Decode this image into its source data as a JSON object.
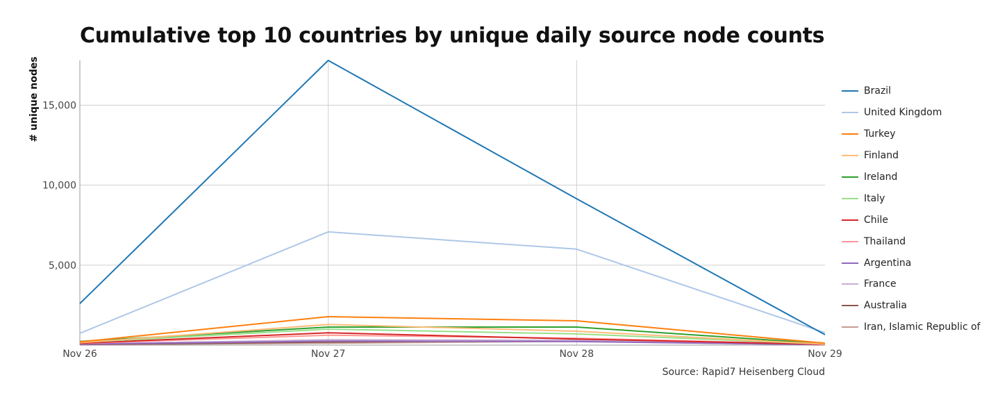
{
  "chart_data": {
    "type": "line",
    "title": "Cumulative top 10 countries by unique daily source node counts",
    "xlabel": "",
    "ylabel": "# unique nodes",
    "source": "Source: Rapid7 Heisenberg Cloud",
    "x": [
      "Nov 26",
      "Nov 27",
      "Nov 28",
      "Nov 29"
    ],
    "ylim": [
      0,
      17800
    ],
    "yticks": [
      5000,
      10000,
      15000
    ],
    "ytick_labels": [
      "5,000",
      "10,000",
      "15,000"
    ],
    "grid": true,
    "legend_position": "right",
    "series": [
      {
        "name": "Brazil",
        "color": "#1f77b4",
        "values": [
          2600,
          17800,
          9150,
          650
        ]
      },
      {
        "name": "United Kingdom",
        "color": "#aec7e8",
        "values": [
          740,
          7080,
          6000,
          780
        ]
      },
      {
        "name": "Turkey",
        "color": "#ff7f0e",
        "values": [
          200,
          1780,
          1520,
          120
        ]
      },
      {
        "name": "Finland",
        "color": "#ffbb78",
        "values": [
          150,
          1290,
          870,
          60
        ]
      },
      {
        "name": "Ireland",
        "color": "#2ca02c",
        "values": [
          230,
          1130,
          1130,
          90
        ]
      },
      {
        "name": "Italy",
        "color": "#98df8a",
        "values": [
          170,
          1000,
          700,
          70
        ]
      },
      {
        "name": "Chile",
        "color": "#d62728",
        "values": [
          120,
          770,
          380,
          50
        ]
      },
      {
        "name": "Thailand",
        "color": "#ff9896",
        "values": [
          110,
          620,
          430,
          50
        ]
      },
      {
        "name": "Argentina",
        "color": "#9467bd",
        "values": [
          60,
          250,
          220,
          30
        ]
      },
      {
        "name": "France",
        "color": "#c5b0d5",
        "values": [
          70,
          335,
          300,
          30
        ]
      },
      {
        "name": "Australia",
        "color": "#8c564b",
        "values": [
          40,
          190,
          300,
          20
        ]
      },
      {
        "name": "Iran, Islamic Republic of",
        "color": "#c49c94",
        "values": [
          30,
          120,
          240,
          20
        ]
      }
    ]
  }
}
